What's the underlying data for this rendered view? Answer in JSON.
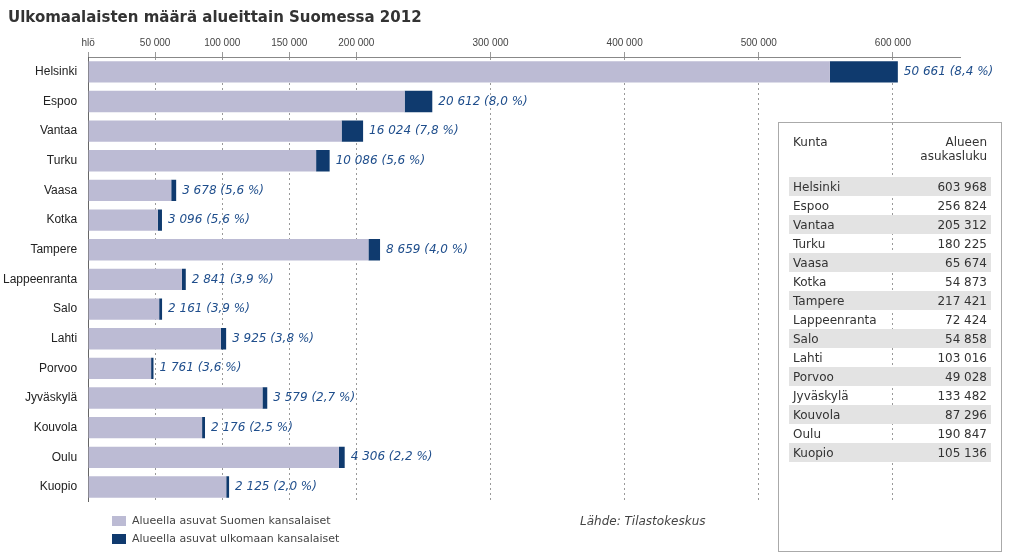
{
  "chart_data": [
    {
      "type": "bar",
      "orientation": "horizontal",
      "stacked": true,
      "title": "Ulkomaalaisten määrä alueittain Suomessa 2012",
      "categories": [
        "Helsinki",
        "Espoo",
        "Vantaa",
        "Turku",
        "Vaasa",
        "Kotka",
        "Tampere",
        "Lappeenranta",
        "Salo",
        "Lahti",
        "Porvoo",
        "Jyväskylä",
        "Kouvola",
        "Oulu",
        "Kuopio"
      ],
      "series": [
        {
          "name": "Alueella asuvat Suomen kansalaiset",
          "color": "#bcbbd4",
          "values": [
            553000,
            236000,
            189000,
            170000,
            62000,
            52000,
            209000,
            70000,
            53000,
            99000,
            47000,
            130000,
            85000,
            187000,
            103000
          ]
        },
        {
          "name": "Alueella asuvat ulkomaan kansalaiset",
          "color": "#0f3a6e",
          "values": [
            50661,
            20612,
            16024,
            10086,
            3678,
            3096,
            8659,
            2841,
            2161,
            3925,
            1761,
            3579,
            2176,
            4306,
            2125
          ],
          "value_labels": [
            "50 661 (8,4 %)",
            "20 612 (8,0 %)",
            "16 024 (7,8 %)",
            "10 086 (5,6 %)",
            "3 678 (5,6 %)",
            "3 096 (5,6 %)",
            "8 659 (4,0 %)",
            "2 841 (3,9 %)",
            "2 161 (3,9 %)",
            "3 925 (3,8 %)",
            "1 761 (3,6 %)",
            "3 579 (2,7 %)",
            "2 176 (2,5 %)",
            "4 306 (2,2 %)",
            "2 125 (2,0 %)"
          ]
        }
      ],
      "xlim": [
        0,
        650000
      ],
      "xticks": [
        {
          "value": 0,
          "label": "hlö"
        },
        {
          "value": 50000,
          "label": "50 000"
        },
        {
          "value": 100000,
          "label": "100 000"
        },
        {
          "value": 150000,
          "label": "150 000"
        },
        {
          "value": 200000,
          "label": "200 000"
        },
        {
          "value": 300000,
          "label": "300 000"
        },
        {
          "value": 400000,
          "label": "400 000"
        },
        {
          "value": 500000,
          "label": "500 000"
        },
        {
          "value": 600000,
          "label": "600 000"
        }
      ],
      "grid": "x",
      "legend": "bottom left",
      "annotations": [
        "Lähde: Tilastokeskus"
      ]
    },
    {
      "type": "other",
      "xlabel": "Kunta",
      "ylabel": "Alueen asukasluku",
      "categories": [
        "Helsinki",
        "Espoo",
        "Vantaa",
        "Turku",
        "Vaasa",
        "Kotka",
        "Tampere",
        "Lappeenranta",
        "Salo",
        "Lahti",
        "Porvoo",
        "Jyväskylä",
        "Kouvola",
        "Oulu",
        "Kuopio"
      ],
      "values": [
        603968,
        256824,
        205312,
        180225,
        65674,
        54873,
        217421,
        72424,
        54858,
        103016,
        49028,
        133482,
        87296,
        190847,
        105136
      ],
      "data_labels": true
    }
  ]
}
